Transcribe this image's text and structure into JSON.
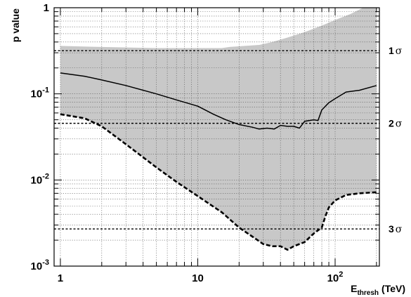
{
  "chart_data": {
    "type": "line",
    "title": "",
    "xlabel": {
      "main": "E",
      "sub": "thresh",
      "unit": "(TeV)"
    },
    "ylabel": "p value",
    "xscale": "log",
    "yscale": "log",
    "xlim": [
      0.9,
      210
    ],
    "ylim": [
      0.001,
      1
    ],
    "grid": true,
    "x_tick_labels": [
      {
        "value": 1,
        "base": "1",
        "exp": ""
      },
      {
        "value": 10,
        "base": "10",
        "exp": ""
      },
      {
        "value": 100,
        "base": "10",
        "exp": "2"
      }
    ],
    "y_tick_labels": [
      {
        "value": 0.001,
        "base": "10",
        "exp": "-3"
      },
      {
        "value": 0.01,
        "base": "10",
        "exp": "-2"
      },
      {
        "value": 0.1,
        "base": "10",
        "exp": "-1"
      },
      {
        "value": 1,
        "base": "1",
        "exp": ""
      }
    ],
    "sigma_lines": [
      {
        "label": "1",
        "symbol": "σ",
        "p": 0.317
      },
      {
        "label": "2",
        "symbol": "σ",
        "p": 0.0455
      },
      {
        "label": "3",
        "symbol": "σ",
        "p": 0.0027
      }
    ],
    "band": {
      "upper": [
        [
          1,
          0.36
        ],
        [
          2,
          0.35
        ],
        [
          5,
          0.34
        ],
        [
          10,
          0.34
        ],
        [
          15,
          0.34
        ],
        [
          17,
          0.35
        ],
        [
          22,
          0.36
        ],
        [
          28,
          0.37
        ],
        [
          35,
          0.4
        ],
        [
          45,
          0.45
        ],
        [
          60,
          0.52
        ],
        [
          80,
          0.62
        ],
        [
          100,
          0.72
        ],
        [
          130,
          0.85
        ],
        [
          160,
          1.0
        ],
        [
          200,
          1.0
        ]
      ],
      "lower": [
        [
          1,
          0.058
        ],
        [
          1.5,
          0.052
        ],
        [
          2,
          0.042
        ],
        [
          3,
          0.026
        ],
        [
          5,
          0.014
        ],
        [
          7,
          0.0095
        ],
        [
          10,
          0.0065
        ],
        [
          15,
          0.0042
        ],
        [
          20,
          0.0028
        ],
        [
          25,
          0.0022
        ],
        [
          30,
          0.0018
        ],
        [
          35,
          0.0017
        ],
        [
          40,
          0.0017
        ],
        [
          45,
          0.00155
        ],
        [
          50,
          0.0017
        ],
        [
          60,
          0.0019
        ],
        [
          70,
          0.0024
        ],
        [
          75,
          0.0026
        ],
        [
          80,
          0.0028
        ],
        [
          85,
          0.0038
        ],
        [
          90,
          0.0048
        ],
        [
          100,
          0.0058
        ],
        [
          120,
          0.0067
        ],
        [
          150,
          0.007
        ],
        [
          200,
          0.0072
        ]
      ]
    },
    "series": [
      {
        "style": "solid",
        "points": [
          [
            1,
            0.175
          ],
          [
            1.5,
            0.16
          ],
          [
            2,
            0.145
          ],
          [
            3,
            0.125
          ],
          [
            5,
            0.1
          ],
          [
            7,
            0.085
          ],
          [
            10,
            0.072
          ],
          [
            13,
            0.058
          ],
          [
            16,
            0.05
          ],
          [
            20,
            0.044
          ],
          [
            25,
            0.041
          ],
          [
            28,
            0.039
          ],
          [
            32,
            0.04
          ],
          [
            36,
            0.039
          ],
          [
            40,
            0.043
          ],
          [
            45,
            0.042
          ],
          [
            50,
            0.042
          ],
          [
            55,
            0.04
          ],
          [
            60,
            0.048
          ],
          [
            70,
            0.05
          ],
          [
            75,
            0.049
          ],
          [
            80,
            0.065
          ],
          [
            90,
            0.079
          ],
          [
            100,
            0.088
          ],
          [
            120,
            0.105
          ],
          [
            150,
            0.11
          ],
          [
            200,
            0.125
          ]
        ]
      },
      {
        "style": "dashed",
        "points": [
          [
            1,
            0.058
          ],
          [
            1.5,
            0.052
          ],
          [
            2,
            0.042
          ],
          [
            3,
            0.026
          ],
          [
            5,
            0.014
          ],
          [
            7,
            0.0095
          ],
          [
            10,
            0.0065
          ],
          [
            15,
            0.0042
          ],
          [
            20,
            0.0028
          ],
          [
            25,
            0.0022
          ],
          [
            30,
            0.0018
          ],
          [
            35,
            0.0017
          ],
          [
            40,
            0.0017
          ],
          [
            45,
            0.00155
          ],
          [
            50,
            0.0017
          ],
          [
            60,
            0.0019
          ],
          [
            70,
            0.0024
          ],
          [
            75,
            0.0026
          ],
          [
            80,
            0.0028
          ],
          [
            85,
            0.0038
          ],
          [
            90,
            0.0048
          ],
          [
            100,
            0.0058
          ],
          [
            120,
            0.0067
          ],
          [
            150,
            0.007
          ],
          [
            200,
            0.0072
          ]
        ]
      }
    ],
    "colors": {
      "band": "#c8c8c8",
      "line": "#000000",
      "grid": "#555555",
      "background": "#ffffff"
    }
  }
}
